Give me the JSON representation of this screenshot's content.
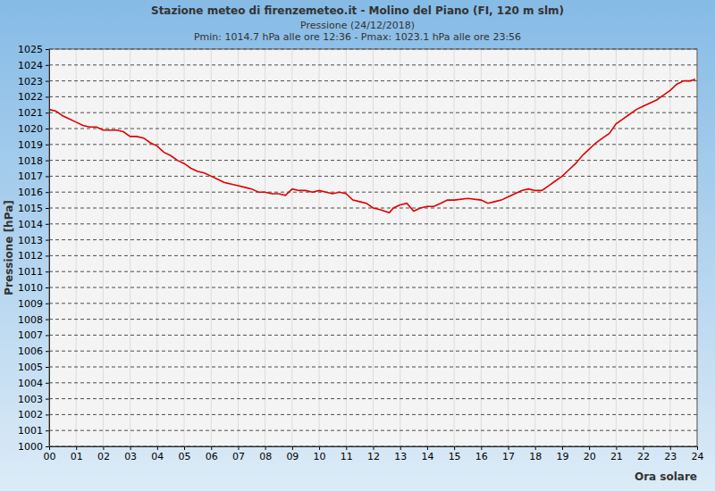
{
  "chart_data": {
    "type": "line",
    "title": "Stazione meteo di firenzemeteo.it - Molino del Piano (FI, 120 m slm)",
    "subtitle": [
      "Pressione (24/12/2018)",
      "Pmin: 1014.7 hPa alle ore 12:36 - Pmax: 1023.1 hPa alle ore 23:56"
    ],
    "y_label": "Pressione [hPa]",
    "x_label": "Ora solare",
    "color": "#e00000",
    "grid": true,
    "x": [
      0,
      0.25,
      0.5,
      0.75,
      1,
      1.25,
      1.5,
      1.75,
      2,
      2.25,
      2.5,
      2.75,
      3,
      3.25,
      3.5,
      3.75,
      4,
      4.25,
      4.5,
      4.75,
      5,
      5.25,
      5.5,
      5.75,
      6,
      6.25,
      6.5,
      6.75,
      7,
      7.25,
      7.5,
      7.75,
      8,
      8.25,
      8.5,
      8.75,
      9,
      9.25,
      9.5,
      9.75,
      10,
      10.25,
      10.5,
      10.75,
      11,
      11.25,
      11.5,
      11.75,
      12,
      12.25,
      12.6,
      12.75,
      13,
      13.25,
      13.5,
      13.75,
      14,
      14.25,
      14.5,
      14.75,
      15,
      15.5,
      16,
      16.25,
      16.5,
      16.75,
      17,
      17.25,
      17.5,
      17.75,
      18,
      18.25,
      18.5,
      18.75,
      19,
      19.25,
      19.5,
      19.75,
      20,
      20.25,
      20.5,
      20.75,
      21,
      21.25,
      21.5,
      21.75,
      22,
      22.25,
      22.5,
      22.75,
      23,
      23.25,
      23.5,
      23.75,
      23.93
    ],
    "values": [
      1021.2,
      1021.1,
      1020.8,
      1020.6,
      1020.4,
      1020.2,
      1020.1,
      1020.1,
      1019.9,
      1019.9,
      1019.9,
      1019.8,
      1019.5,
      1019.5,
      1019.4,
      1019.1,
      1018.9,
      1018.5,
      1018.3,
      1018.0,
      1017.8,
      1017.5,
      1017.3,
      1017.2,
      1017.0,
      1016.8,
      1016.6,
      1016.5,
      1016.4,
      1016.3,
      1016.2,
      1016.0,
      1016.0,
      1015.9,
      1015.9,
      1015.8,
      1016.2,
      1016.1,
      1016.1,
      1016.0,
      1016.1,
      1016.0,
      1015.9,
      1016.0,
      1015.9,
      1015.5,
      1015.4,
      1015.3,
      1015.0,
      1014.9,
      1014.7,
      1015.0,
      1015.2,
      1015.3,
      1014.8,
      1015.0,
      1015.1,
      1015.1,
      1015.3,
      1015.5,
      1015.5,
      1015.6,
      1015.5,
      1015.3,
      1015.4,
      1015.5,
      1015.7,
      1015.9,
      1016.1,
      1016.2,
      1016.1,
      1016.1,
      1016.4,
      1016.7,
      1017.0,
      1017.4,
      1017.8,
      1018.3,
      1018.7,
      1019.1,
      1019.4,
      1019.7,
      1020.3,
      1020.6,
      1020.9,
      1021.2,
      1021.4,
      1021.6,
      1021.8,
      1022.1,
      1022.4,
      1022.8,
      1023.0,
      1023.0,
      1023.1
    ],
    "xlim": [
      0,
      24
    ],
    "ylim": [
      1000,
      1025
    ],
    "xticks": [
      {
        "value": 0,
        "label": "00"
      },
      {
        "value": 1,
        "label": "01"
      },
      {
        "value": 2,
        "label": "02"
      },
      {
        "value": 3,
        "label": "03"
      },
      {
        "value": 4,
        "label": "04"
      },
      {
        "value": 5,
        "label": "05"
      },
      {
        "value": 6,
        "label": "06"
      },
      {
        "value": 7,
        "label": "07"
      },
      {
        "value": 8,
        "label": "08"
      },
      {
        "value": 9,
        "label": "09"
      },
      {
        "value": 10,
        "label": "10"
      },
      {
        "value": 11,
        "label": "11"
      },
      {
        "value": 12,
        "label": "12"
      },
      {
        "value": 13,
        "label": "13"
      },
      {
        "value": 14,
        "label": "14"
      },
      {
        "value": 15,
        "label": "15"
      },
      {
        "value": 16,
        "label": "16"
      },
      {
        "value": 17,
        "label": "17"
      },
      {
        "value": 18,
        "label": "18"
      },
      {
        "value": 19,
        "label": "19"
      },
      {
        "value": 20,
        "label": "20"
      },
      {
        "value": 21,
        "label": "21"
      },
      {
        "value": 22,
        "label": "22"
      },
      {
        "value": 23,
        "label": "23"
      },
      {
        "value": 24,
        "label": "24"
      }
    ],
    "yticks": [
      1000,
      1001,
      1002,
      1003,
      1004,
      1005,
      1006,
      1007,
      1008,
      1009,
      1010,
      1011,
      1012,
      1013,
      1014,
      1015,
      1016,
      1017,
      1018,
      1019,
      1020,
      1021,
      1022,
      1023,
      1024,
      1025
    ]
  }
}
